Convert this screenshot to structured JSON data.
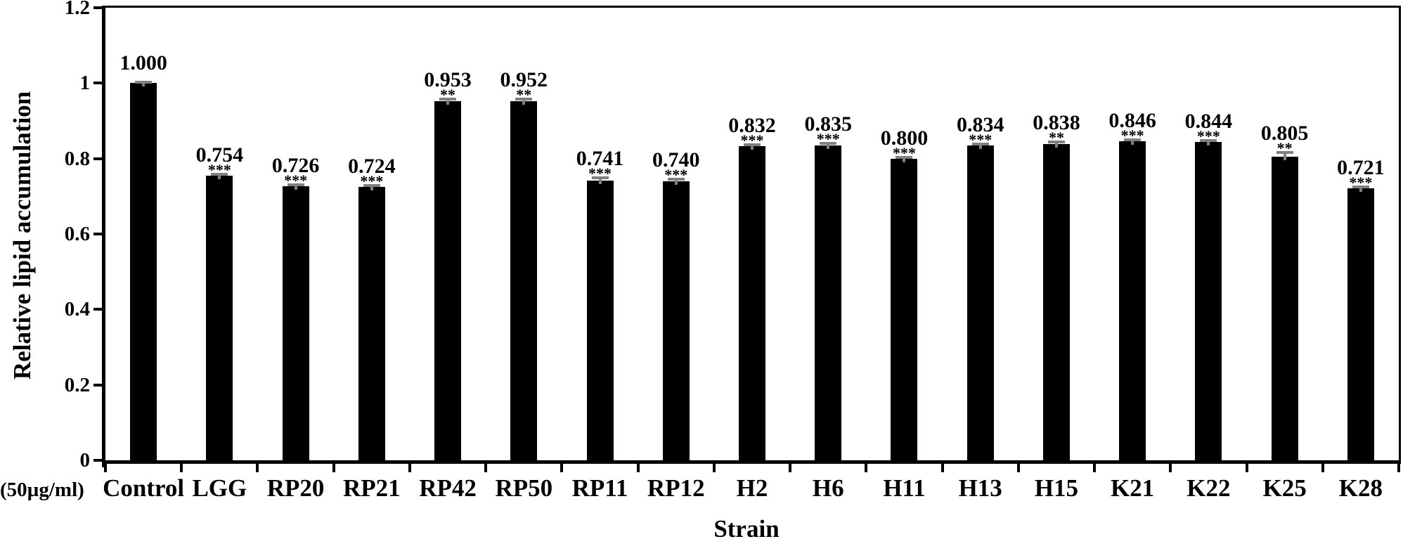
{
  "chart_data": {
    "type": "bar",
    "title": "",
    "xlabel": "Strain",
    "ylabel": "Relative lipid accumulation",
    "x_unit_label": "(50µg/ml)",
    "categories": [
      "Control",
      "LGG",
      "RP20",
      "RP21",
      "RP42",
      "RP50",
      "RP11",
      "RP12",
      "H2",
      "H6",
      "H11",
      "H13",
      "H15",
      "K21",
      "K22",
      "K25",
      "K28"
    ],
    "values": [
      1.0,
      0.754,
      0.726,
      0.724,
      0.953,
      0.952,
      0.741,
      0.74,
      0.832,
      0.835,
      0.8,
      0.834,
      0.838,
      0.846,
      0.844,
      0.805,
      0.721
    ],
    "value_labels": [
      "1.000",
      "0.754",
      "0.726",
      "0.724",
      "0.953",
      "0.952",
      "0.741",
      "0.740",
      "0.832",
      "0.835",
      "0.800",
      "0.834",
      "0.838",
      "0.846",
      "0.844",
      "0.805",
      "0.721"
    ],
    "significance": [
      "",
      "***",
      "***",
      "***",
      "**",
      "**",
      "***",
      "***",
      "***",
      "***",
      "***",
      "***",
      "**",
      "***",
      "***",
      "**",
      "***"
    ],
    "errors": [
      0.002,
      0.004,
      0.005,
      0.004,
      0.005,
      0.005,
      0.008,
      0.005,
      0.004,
      0.006,
      0.004,
      0.005,
      0.006,
      0.003,
      0.003,
      0.011,
      0.004
    ],
    "ylim": [
      0,
      1.2
    ],
    "yticks": [
      0,
      0.2,
      0.4,
      0.6,
      0.8,
      1,
      1.2
    ],
    "ytick_labels": [
      "0",
      "0.2",
      "0.4",
      "0.6",
      "0.8",
      "1",
      "1.2"
    ],
    "bar_color": "#000000",
    "error_bar_color": "#808080",
    "grid": false,
    "legend": null
  }
}
